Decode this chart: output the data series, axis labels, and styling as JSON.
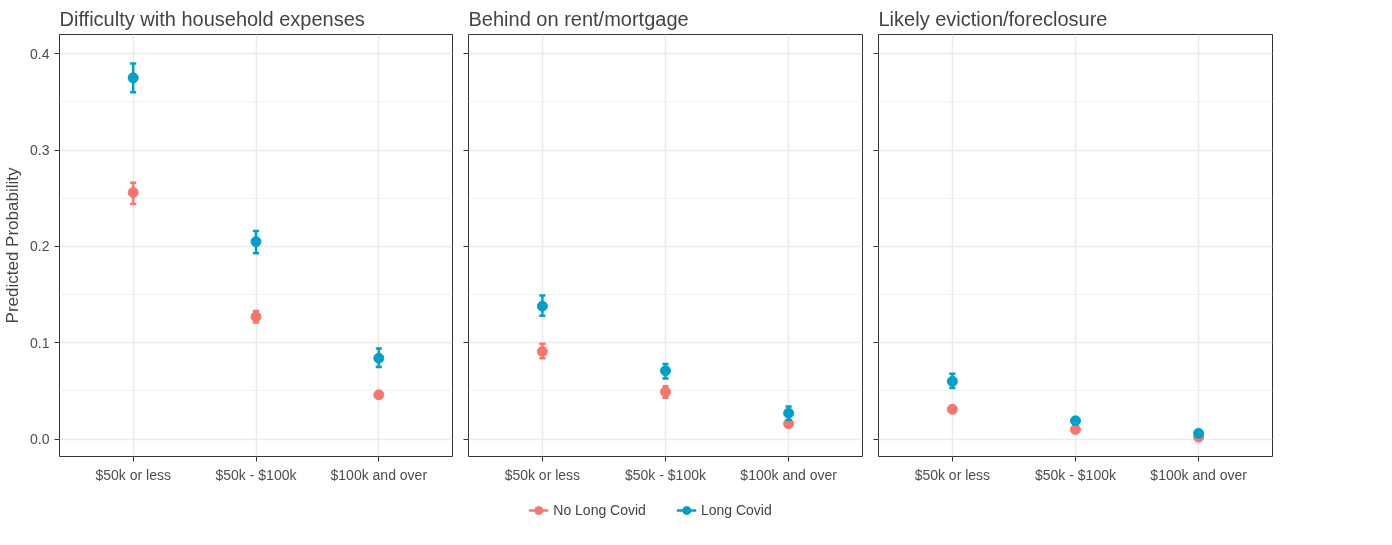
{
  "chart_data": [
    {
      "type": "scatter",
      "title": "Difficulty with household expenses",
      "ylabel": "Predicted Probability",
      "categories": [
        "$50k or less",
        "$50k - $100k",
        "$100k and over"
      ],
      "ylim": [
        -0.018,
        0.42
      ],
      "yticks": [
        {
          "value": 0,
          "label": "0.0"
        },
        0.1,
        0.2,
        0.3,
        0.4
      ],
      "grid": true,
      "marker": "circle",
      "legend": "bottom",
      "series": [
        {
          "name": "No Long Covid",
          "color": "#f8766d",
          "values": [
            0.256,
            0.127,
            0.046
          ],
          "errors": [
            [
              0.244,
              0.266
            ],
            [
              0.121,
              0.133
            ],
            [
              0.043,
              0.048
            ]
          ]
        },
        {
          "name": "Long Covid",
          "color": "#00a0c8",
          "values": [
            0.375,
            0.205,
            0.084
          ],
          "errors": [
            [
              0.36,
              0.39
            ],
            [
              0.193,
              0.216
            ],
            [
              0.075,
              0.094
            ]
          ]
        }
      ]
    },
    {
      "type": "scatter",
      "title": "Behind on rent/mortgage",
      "categories": [
        "$50k or less",
        "$50k - $100k",
        "$100k and over"
      ],
      "ylim": [
        -0.018,
        0.42
      ],
      "yticks": [
        {
          "value": 0,
          "label": null
        },
        {
          "value": 0.1,
          "label": null
        },
        {
          "value": 0.2,
          "label": null
        },
        {
          "value": 0.3,
          "label": null
        },
        {
          "value": 0.4,
          "label": null
        }
      ],
      "grid": true,
      "marker": "circle",
      "tick_labels": "x",
      "series": [
        {
          "color": "#f8766d",
          "values": [
            0.091,
            0.049,
            0.016
          ],
          "errors": [
            [
              0.084,
              0.099
            ],
            [
              0.043,
              0.055
            ],
            [
              0.014,
              0.018
            ]
          ]
        },
        {
          "color": "#00a0c8",
          "values": [
            0.138,
            0.071,
            0.027
          ],
          "errors": [
            [
              0.128,
              0.149
            ],
            [
              0.063,
              0.078
            ],
            [
              0.02,
              0.034
            ]
          ]
        }
      ]
    },
    {
      "type": "scatter",
      "title": "Likely eviction/foreclosure",
      "categories": [
        "$50k or less",
        "$50k - $100k",
        "$100k and over"
      ],
      "ylim": [
        -0.018,
        0.42
      ],
      "yticks": [
        {
          "value": 0,
          "label": null
        },
        {
          "value": 0.1,
          "label": null
        },
        {
          "value": 0.2,
          "label": null
        },
        {
          "value": 0.3,
          "label": null
        },
        {
          "value": 0.4,
          "label": null
        }
      ],
      "grid": true,
      "marker": "circle",
      "tick_labels": "x",
      "series": [
        {
          "color": "#f8766d",
          "values": [
            0.031,
            0.01,
            0.002
          ],
          "errors": [
            [
              0.028,
              0.034
            ],
            [
              0.009,
              0.012
            ],
            [
              0.001,
              0.003
            ]
          ]
        },
        {
          "color": "#00a0c8",
          "values": [
            0.06,
            0.019,
            0.006
          ],
          "errors": [
            [
              0.053,
              0.068
            ],
            [
              0.017,
              0.021
            ],
            [
              0.003,
              0.009
            ]
          ]
        }
      ]
    }
  ]
}
